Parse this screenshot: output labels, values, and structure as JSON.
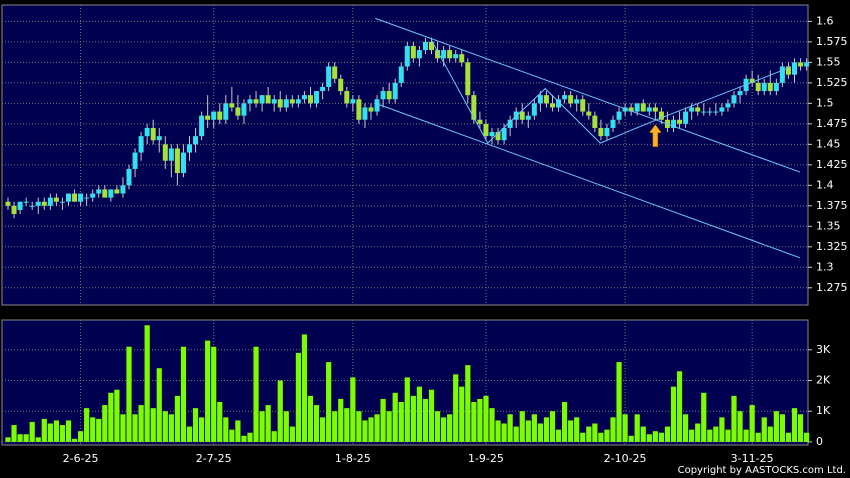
{
  "chart_data": [
    {
      "type": "candlestick",
      "up_color": "#33dff0",
      "down_color": "#a6e23a",
      "wick_color": "#c8c8c8",
      "background": "#000050",
      "ylim": [
        1.254,
        1.62
      ],
      "yticks": [
        1.275,
        1.3,
        1.325,
        1.35,
        1.375,
        1.4,
        1.425,
        1.45,
        1.475,
        1.5,
        1.525,
        1.55,
        1.575,
        1.6
      ],
      "grid": true,
      "ohlc": [
        [
          1.38,
          1.385,
          1.37,
          1.375
        ],
        [
          1.375,
          1.38,
          1.36,
          1.365
        ],
        [
          1.37,
          1.38,
          1.365,
          1.38
        ],
        [
          1.38,
          1.385,
          1.375,
          1.38
        ],
        [
          1.375,
          1.38,
          1.37,
          1.375
        ],
        [
          1.375,
          1.385,
          1.365,
          1.38
        ],
        [
          1.38,
          1.385,
          1.37,
          1.375
        ],
        [
          1.375,
          1.39,
          1.37,
          1.385
        ],
        [
          1.385,
          1.39,
          1.375,
          1.38
        ],
        [
          1.38,
          1.385,
          1.37,
          1.38
        ],
        [
          1.38,
          1.39,
          1.375,
          1.39
        ],
        [
          1.39,
          1.395,
          1.38,
          1.38
        ],
        [
          1.38,
          1.39,
          1.375,
          1.39
        ],
        [
          1.385,
          1.39,
          1.375,
          1.385
        ],
        [
          1.385,
          1.395,
          1.38,
          1.39
        ],
        [
          1.39,
          1.4,
          1.385,
          1.395
        ],
        [
          1.395,
          1.4,
          1.385,
          1.385
        ],
        [
          1.385,
          1.395,
          1.38,
          1.395
        ],
        [
          1.395,
          1.4,
          1.39,
          1.39
        ],
        [
          1.39,
          1.41,
          1.385,
          1.4
        ],
        [
          1.4,
          1.425,
          1.395,
          1.42
        ],
        [
          1.42,
          1.445,
          1.41,
          1.44
        ],
        [
          1.44,
          1.465,
          1.43,
          1.46
        ],
        [
          1.46,
          1.475,
          1.45,
          1.47
        ],
        [
          1.47,
          1.48,
          1.45,
          1.455
        ],
        [
          1.455,
          1.47,
          1.44,
          1.46
        ],
        [
          1.45,
          1.46,
          1.42,
          1.43
        ],
        [
          1.43,
          1.45,
          1.41,
          1.445
        ],
        [
          1.445,
          1.45,
          1.4,
          1.415
        ],
        [
          1.415,
          1.45,
          1.41,
          1.44
        ],
        [
          1.44,
          1.46,
          1.43,
          1.45
        ],
        [
          1.45,
          1.47,
          1.44,
          1.46
        ],
        [
          1.46,
          1.49,
          1.455,
          1.485
        ],
        [
          1.485,
          1.51,
          1.47,
          1.48
        ],
        [
          1.48,
          1.49,
          1.47,
          1.49
        ],
        [
          1.49,
          1.5,
          1.475,
          1.48
        ],
        [
          1.48,
          1.51,
          1.475,
          1.5
        ],
        [
          1.5,
          1.52,
          1.49,
          1.495
        ],
        [
          1.495,
          1.51,
          1.48,
          1.485
        ],
        [
          1.485,
          1.505,
          1.475,
          1.5
        ],
        [
          1.5,
          1.51,
          1.49,
          1.505
        ],
        [
          1.505,
          1.515,
          1.495,
          1.5
        ],
        [
          1.5,
          1.51,
          1.49,
          1.51
        ],
        [
          1.51,
          1.52,
          1.5,
          1.5
        ],
        [
          1.5,
          1.51,
          1.49,
          1.505
        ],
        [
          1.505,
          1.515,
          1.49,
          1.495
        ],
        [
          1.495,
          1.51,
          1.49,
          1.505
        ],
        [
          1.505,
          1.51,
          1.495,
          1.5
        ],
        [
          1.5,
          1.51,
          1.495,
          1.505
        ],
        [
          1.505,
          1.515,
          1.5,
          1.51
        ],
        [
          1.51,
          1.52,
          1.495,
          1.5
        ],
        [
          1.5,
          1.515,
          1.495,
          1.515
        ],
        [
          1.515,
          1.525,
          1.505,
          1.52
        ],
        [
          1.52,
          1.55,
          1.515,
          1.545
        ],
        [
          1.545,
          1.55,
          1.525,
          1.53
        ],
        [
          1.53,
          1.535,
          1.51,
          1.515
        ],
        [
          1.515,
          1.52,
          1.495,
          1.5
        ],
        [
          1.5,
          1.51,
          1.49,
          1.505
        ],
        [
          1.505,
          1.51,
          1.475,
          1.48
        ],
        [
          1.48,
          1.5,
          1.47,
          1.495
        ],
        [
          1.495,
          1.5,
          1.48,
          1.49
        ],
        [
          1.49,
          1.51,
          1.485,
          1.505
        ],
        [
          1.505,
          1.52,
          1.495,
          1.515
        ],
        [
          1.515,
          1.525,
          1.5,
          1.505
        ],
        [
          1.505,
          1.53,
          1.5,
          1.525
        ],
        [
          1.525,
          1.55,
          1.52,
          1.545
        ],
        [
          1.545,
          1.575,
          1.54,
          1.57
        ],
        [
          1.57,
          1.575,
          1.55,
          1.555
        ],
        [
          1.555,
          1.57,
          1.545,
          1.565
        ],
        [
          1.565,
          1.58,
          1.56,
          1.575
        ],
        [
          1.575,
          1.58,
          1.56,
          1.565
        ],
        [
          1.565,
          1.575,
          1.55,
          1.555
        ],
        [
          1.555,
          1.57,
          1.545,
          1.565
        ],
        [
          1.565,
          1.57,
          1.55,
          1.555
        ],
        [
          1.555,
          1.565,
          1.55,
          1.56
        ],
        [
          1.56,
          1.565,
          1.545,
          1.55
        ],
        [
          1.55,
          1.555,
          1.5,
          1.51
        ],
        [
          1.51,
          1.515,
          1.475,
          1.48
        ],
        [
          1.48,
          1.49,
          1.47,
          1.475
        ],
        [
          1.475,
          1.48,
          1.455,
          1.46
        ],
        [
          1.46,
          1.47,
          1.45,
          1.465
        ],
        [
          1.465,
          1.47,
          1.45,
          1.455
        ],
        [
          1.455,
          1.475,
          1.45,
          1.47
        ],
        [
          1.47,
          1.485,
          1.46,
          1.48
        ],
        [
          1.48,
          1.495,
          1.47,
          1.49
        ],
        [
          1.49,
          1.5,
          1.475,
          1.48
        ],
        [
          1.48,
          1.49,
          1.47,
          1.485
        ],
        [
          1.485,
          1.505,
          1.48,
          1.5
        ],
        [
          1.5,
          1.515,
          1.49,
          1.51
        ],
        [
          1.51,
          1.515,
          1.495,
          1.5
        ],
        [
          1.5,
          1.51,
          1.49,
          1.495
        ],
        [
          1.495,
          1.51,
          1.49,
          1.505
        ],
        [
          1.505,
          1.515,
          1.5,
          1.51
        ],
        [
          1.51,
          1.515,
          1.495,
          1.5
        ],
        [
          1.5,
          1.51,
          1.49,
          1.505
        ],
        [
          1.505,
          1.51,
          1.485,
          1.49
        ],
        [
          1.49,
          1.5,
          1.48,
          1.485
        ],
        [
          1.485,
          1.49,
          1.465,
          1.47
        ],
        [
          1.47,
          1.48,
          1.455,
          1.46
        ],
        [
          1.46,
          1.475,
          1.455,
          1.47
        ],
        [
          1.47,
          1.485,
          1.465,
          1.48
        ],
        [
          1.48,
          1.495,
          1.475,
          1.49
        ],
        [
          1.49,
          1.5,
          1.485,
          1.495
        ],
        [
          1.495,
          1.5,
          1.485,
          1.49
        ],
        [
          1.49,
          1.5,
          1.485,
          1.5
        ],
        [
          1.5,
          1.505,
          1.49,
          1.49
        ],
        [
          1.49,
          1.5,
          1.485,
          1.495
        ],
        [
          1.495,
          1.5,
          1.48,
          1.49
        ],
        [
          1.49,
          1.495,
          1.475,
          1.48
        ],
        [
          1.48,
          1.49,
          1.465,
          1.47
        ],
        [
          1.47,
          1.485,
          1.465,
          1.48
        ],
        [
          1.48,
          1.49,
          1.47,
          1.475
        ],
        [
          1.475,
          1.495,
          1.47,
          1.49
        ],
        [
          1.49,
          1.5,
          1.48,
          1.495
        ],
        [
          1.495,
          1.5,
          1.485,
          1.49
        ],
        [
          1.49,
          1.5,
          1.485,
          1.49
        ],
        [
          1.49,
          1.495,
          1.485,
          1.49
        ],
        [
          1.49,
          1.5,
          1.485,
          1.49
        ],
        [
          1.49,
          1.5,
          1.485,
          1.495
        ],
        [
          1.495,
          1.505,
          1.49,
          1.5
        ],
        [
          1.5,
          1.515,
          1.495,
          1.51
        ],
        [
          1.51,
          1.52,
          1.5,
          1.515
        ],
        [
          1.515,
          1.535,
          1.51,
          1.53
        ],
        [
          1.53,
          1.54,
          1.52,
          1.525
        ],
        [
          1.525,
          1.535,
          1.51,
          1.515
        ],
        [
          1.515,
          1.53,
          1.51,
          1.525
        ],
        [
          1.525,
          1.54,
          1.51,
          1.515
        ],
        [
          1.515,
          1.53,
          1.51,
          1.525
        ],
        [
          1.525,
          1.55,
          1.52,
          1.545
        ],
        [
          1.545,
          1.55,
          1.53,
          1.535
        ],
        [
          1.535,
          1.555,
          1.525,
          1.55
        ],
        [
          1.55,
          1.555,
          1.54,
          1.545
        ],
        [
          1.545,
          1.555,
          1.54,
          1.55
        ]
      ],
      "trendline_color": "#6ec8ff",
      "trendlines": [
        {
          "x": [
            60.7,
            130.9
          ],
          "y": [
            1.6037,
            1.4162
          ]
        },
        {
          "x": [
            60.7,
            130.9
          ],
          "y": [
            1.5002,
            1.3116
          ]
        },
        {
          "x": [
            70,
            79.3,
            88.8,
            97.9,
            107,
            129.3
          ],
          "y": [
            1.577,
            1.4515,
            1.518,
            1.4515,
            1.4795,
            1.544
          ]
        }
      ],
      "arrow": {
        "x": 107,
        "y": 1.474,
        "color": "#ffb020"
      }
    },
    {
      "type": "bar",
      "color": "#7cfc00",
      "background": "#000050",
      "ylim": [
        -100,
        3970
      ],
      "yticks": [
        0,
        {
          "value": 1000,
          "label": "1K"
        },
        {
          "value": 2000,
          "label": "2K"
        },
        {
          "value": 3000,
          "label": "3K"
        }
      ],
      "grid": true,
      "categories": [
        null,
        null,
        null,
        null,
        null,
        null,
        null,
        null,
        null,
        null,
        null,
        null,
        "2-6-25",
        null,
        null,
        null,
        null,
        null,
        null,
        null,
        null,
        null,
        null,
        null,
        null,
        null,
        null,
        null,
        null,
        null,
        null,
        null,
        null,
        null,
        "2-7-25",
        null,
        null,
        null,
        null,
        null,
        null,
        null,
        null,
        null,
        null,
        null,
        null,
        null,
        null,
        null,
        null,
        null,
        null,
        null,
        null,
        null,
        null,
        "1-8-25",
        null,
        null,
        null,
        null,
        null,
        null,
        null,
        null,
        null,
        null,
        null,
        null,
        null,
        null,
        null,
        null,
        null,
        null,
        null,
        null,
        null,
        "1-9-25",
        null,
        null,
        null,
        null,
        null,
        null,
        null,
        null,
        null,
        null,
        null,
        null,
        null,
        null,
        null,
        null,
        null,
        null,
        null,
        null,
        null,
        null,
        "2-10-25",
        null,
        null,
        null,
        null,
        null,
        null,
        null,
        null,
        null,
        null,
        null,
        null,
        null,
        null,
        null,
        null,
        null,
        null,
        null,
        null,
        "3-11-25",
        null,
        null,
        null,
        null,
        null,
        null,
        null,
        null,
        null
      ],
      "values": [
        150,
        550,
        250,
        250,
        650,
        150,
        750,
        600,
        700,
        550,
        700,
        100,
        350,
        1100,
        800,
        750,
        1200,
        1600,
        1700,
        900,
        3100,
        900,
        1200,
        3800,
        1100,
        2400,
        1000,
        900,
        1500,
        3100,
        500,
        1100,
        800,
        3300,
        3100,
        1300,
        800,
        400,
        700,
        200,
        300,
        3100,
        1000,
        1200,
        350,
        2000,
        1000,
        500,
        2900,
        3500,
        1500,
        1200,
        800,
        2600,
        1000,
        1400,
        1100,
        2100,
        1000,
        700,
        800,
        900,
        1400,
        1000,
        1600,
        1300,
        2100,
        1500,
        1800,
        1400,
        1700,
        1000,
        800,
        900,
        2200,
        1800,
        2500,
        1300,
        1400,
        1500,
        1100,
        700,
        600,
        900,
        500,
        1000,
        700,
        900,
        600,
        800,
        1000,
        400,
        1300,
        700,
        800,
        300,
        500,
        600,
        300,
        400,
        800,
        2600,
        900,
        200,
        900,
        500,
        250,
        350,
        300,
        500,
        1800,
        2300,
        900,
        400,
        600,
        1600,
        400,
        500,
        800,
        400,
        1500,
        1000,
        400,
        1200,
        300,
        800,
        500,
        1000,
        900,
        300,
        1100,
        900,
        300
      ]
    }
  ],
  "footer": "Copyright by AASTOCKS.com Ltd."
}
